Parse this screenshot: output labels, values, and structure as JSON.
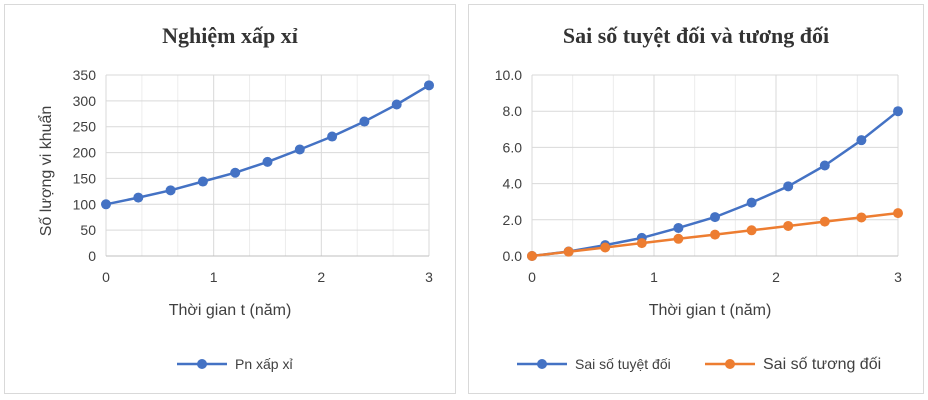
{
  "chart_data": [
    {
      "type": "scatter",
      "title": "Nghiệm xấp xỉ",
      "xlabel": "Thời gian t (năm)",
      "ylabel": "Số lượng vi khuẩn",
      "xlim": [
        0,
        3
      ],
      "ylim": [
        0,
        350
      ],
      "xticks": [
        0,
        1,
        2,
        3
      ],
      "xtick_labels": [
        "0",
        "1",
        "2",
        "3"
      ],
      "yticks": [
        0,
        50,
        100,
        150,
        200,
        250,
        300,
        350
      ],
      "ytick_labels": [
        "0",
        "50",
        "100",
        "150",
        "200",
        "250",
        "300",
        "350"
      ],
      "grid": true,
      "legend": "bottom",
      "x": [
        0,
        0.3,
        0.6,
        0.9,
        1.2,
        1.5,
        1.8,
        2.1,
        2.4,
        2.7,
        3.0
      ],
      "series": [
        {
          "name": "Pn xấp xỉ",
          "color": "#4472c4",
          "values": [
            100,
            113,
            127,
            144,
            161,
            182,
            206,
            231,
            260,
            293,
            330
          ]
        }
      ]
    },
    {
      "type": "scatter",
      "title": "Sai số tuyệt đối và tương đối",
      "xlabel": "Thời gian t (năm)",
      "ylabel": "",
      "xlim": [
        0,
        3
      ],
      "ylim": [
        0,
        10
      ],
      "xticks": [
        0,
        1,
        2,
        3
      ],
      "xtick_labels": [
        "0",
        "1",
        "2",
        "3"
      ],
      "yticks": [
        0,
        2,
        4,
        6,
        8,
        10
      ],
      "ytick_labels": [
        "0.0",
        "2.0",
        "4.0",
        "6.0",
        "8.0",
        "10.0"
      ],
      "grid": true,
      "legend": "bottom",
      "x": [
        0,
        0.3,
        0.6,
        0.9,
        1.2,
        1.5,
        1.8,
        2.1,
        2.4,
        2.7,
        3.0
      ],
      "series": [
        {
          "name": "Sai số tuyệt đối",
          "color": "#4472c4",
          "values": [
            0.0,
            0.25,
            0.6,
            1.0,
            1.55,
            2.15,
            2.95,
            3.85,
            5.0,
            6.4,
            8.0
          ]
        },
        {
          "name": "Sai số tương đối",
          "color": "#ed7d31",
          "values": [
            0.0,
            0.24,
            0.47,
            0.71,
            0.95,
            1.18,
            1.42,
            1.66,
            1.9,
            2.13,
            2.37
          ]
        }
      ]
    }
  ]
}
